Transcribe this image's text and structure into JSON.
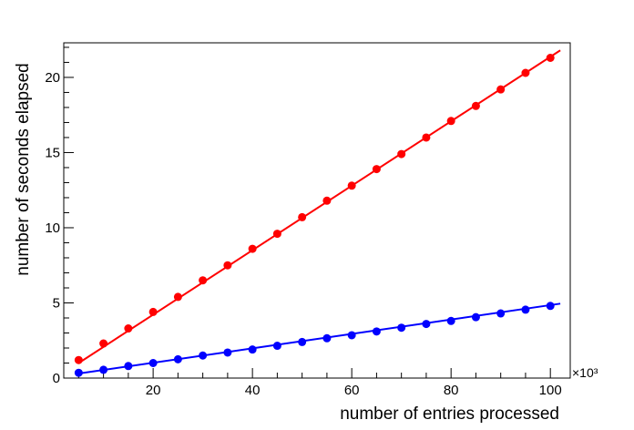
{
  "chart_data": {
    "type": "scatter",
    "title": "",
    "xlabel": "number of entries processed",
    "ylabel": "number of seconds elapsed",
    "x_multiplier_label": "×10³",
    "xlim": [
      2,
      104
    ],
    "ylim": [
      0,
      22.3
    ],
    "x_ticks_major": [
      20,
      40,
      60,
      80,
      100
    ],
    "y_ticks_major": [
      0,
      5,
      10,
      15,
      20
    ],
    "grid": false,
    "legend": "none",
    "series": [
      {
        "color": "#ff0000",
        "x": [
          5,
          10,
          15,
          20,
          25,
          30,
          35,
          40,
          45,
          50,
          55,
          60,
          65,
          70,
          75,
          80,
          85,
          90,
          95,
          100
        ],
        "y": [
          1.2,
          2.3,
          3.3,
          4.4,
          5.4,
          6.5,
          7.5,
          8.6,
          9.6,
          10.7,
          11.8,
          12.8,
          13.9,
          14.9,
          16.0,
          17.1,
          18.1,
          19.2,
          20.3,
          21.3
        ],
        "fit": {
          "x": [
            5,
            102
          ],
          "y": [
            1.0,
            21.8
          ]
        }
      },
      {
        "color": "#0000ff",
        "x": [
          5,
          10,
          15,
          20,
          25,
          30,
          35,
          40,
          45,
          50,
          55,
          60,
          65,
          70,
          75,
          80,
          85,
          90,
          95,
          100
        ],
        "y": [
          0.35,
          0.55,
          0.8,
          1.0,
          1.25,
          1.5,
          1.7,
          1.9,
          2.15,
          2.4,
          2.65,
          2.85,
          3.1,
          3.35,
          3.6,
          3.8,
          4.05,
          4.3,
          4.55,
          4.8
        ],
        "fit": {
          "x": [
            5,
            102
          ],
          "y": [
            0.3,
            4.95
          ]
        }
      }
    ]
  }
}
